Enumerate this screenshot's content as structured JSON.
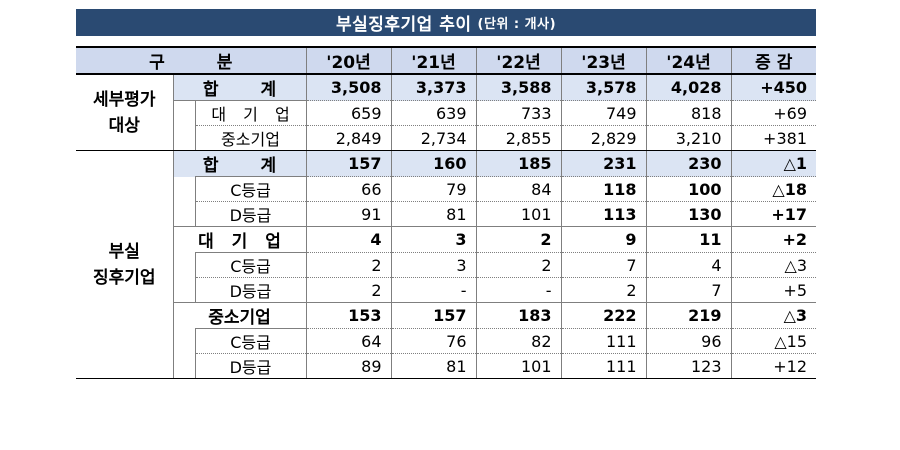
{
  "title": "부실징후기업 추이",
  "unit": "(단위 : 개사)",
  "header": {
    "gubun": "구분",
    "years": [
      "'20년",
      "'21년",
      "'22년",
      "'23년",
      "'24년"
    ],
    "change": "증 감"
  },
  "group1": {
    "label_line1": "세부평가",
    "label_line2": "대상",
    "rows": [
      {
        "label": "합 계",
        "values": [
          "3,508",
          "3,373",
          "3,588",
          "3,578",
          "4,028"
        ],
        "change": "+450"
      },
      {
        "label": "대 기 업",
        "values": [
          "659",
          "639",
          "733",
          "749",
          "818"
        ],
        "change": "+69"
      },
      {
        "label": "중소기업",
        "values": [
          "2,849",
          "2,734",
          "2,855",
          "2,829",
          "3,210"
        ],
        "change": "+381"
      }
    ]
  },
  "group2": {
    "label_line1": "부실",
    "label_line2": "징후기업",
    "total": {
      "label": "합 계",
      "values": [
        "157",
        "160",
        "185",
        "231",
        "230"
      ],
      "change": "△1"
    },
    "total_c": {
      "label": "C등급",
      "values": [
        "66",
        "79",
        "84",
        "118",
        "100"
      ],
      "change": "△18"
    },
    "total_d": {
      "label": "D등급",
      "values": [
        "91",
        "81",
        "101",
        "113",
        "130"
      ],
      "change": "+17"
    },
    "large": {
      "label": "대 기 업",
      "values": [
        "4",
        "3",
        "2",
        "9",
        "11"
      ],
      "change": "+2"
    },
    "large_c": {
      "label": "C등급",
      "values": [
        "2",
        "3",
        "2",
        "7",
        "4"
      ],
      "change": "△3"
    },
    "large_d": {
      "label": "D등급",
      "values": [
        "2",
        "-",
        "-",
        "2",
        "7"
      ],
      "change": "+5"
    },
    "sme": {
      "label": "중소기업",
      "values": [
        "153",
        "157",
        "183",
        "222",
        "219"
      ],
      "change": "△3"
    },
    "sme_c": {
      "label": "C등급",
      "values": [
        "64",
        "76",
        "82",
        "111",
        "96"
      ],
      "change": "△15"
    },
    "sme_d": {
      "label": "D등급",
      "values": [
        "89",
        "81",
        "101",
        "111",
        "123"
      ],
      "change": "+12"
    }
  }
}
